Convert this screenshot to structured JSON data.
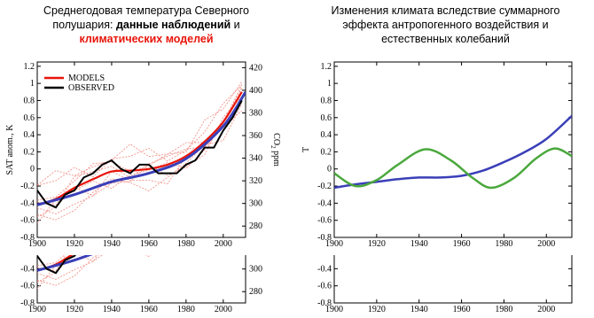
{
  "titles": {
    "left_line1": "Среднегодовая температура Северного",
    "left_line2_a": "полушария: ",
    "left_line2_b": "данные наблюдений",
    "left_line2_c": " и",
    "left_line3": "климатических моделей",
    "right_line1": "Изменения климата вследствие суммарного",
    "right_line2": "эффекта антропогенного воздействия и",
    "right_line3": "естественных колебаний"
  },
  "colors": {
    "models": "#e8140a",
    "models_faint": "#f08a80",
    "observed": "#000000",
    "trend_blue": "#3a3fb8",
    "oscillation_green": "#4aa83c"
  },
  "chart_data": [
    {
      "type": "line",
      "title": "",
      "ylabel": "SAT anom., K",
      "y2label": "CO2 ppm",
      "xlim": [
        1900,
        2012
      ],
      "ylim": [
        -0.8,
        1.25
      ],
      "y2lim": [
        270,
        425
      ],
      "x_ticks": [
        1900,
        1920,
        1940,
        1960,
        1980,
        2000
      ],
      "y_ticks": [
        -0.8,
        -0.6,
        -0.4,
        -0.2,
        0,
        0.2,
        0.4,
        0.6,
        0.8,
        1,
        1.2
      ],
      "y2_ticks": [
        280,
        300,
        320,
        340,
        360,
        380,
        400,
        420
      ],
      "legend": {
        "position": "top-left",
        "entries": [
          "MODELS",
          "OBSERVED"
        ]
      },
      "series": [
        {
          "name": "MODELS",
          "x": [
            1900,
            1910,
            1920,
            1930,
            1940,
            1950,
            1960,
            1970,
            1980,
            1990,
            2000,
            2010
          ],
          "values": [
            -0.42,
            -0.35,
            -0.22,
            -0.12,
            -0.03,
            -0.02,
            0.0,
            0.05,
            0.15,
            0.32,
            0.55,
            0.9
          ]
        },
        {
          "name": "OBSERVED",
          "x": [
            1900,
            1905,
            1910,
            1915,
            1920,
            1925,
            1930,
            1935,
            1940,
            1945,
            1950,
            1955,
            1960,
            1965,
            1970,
            1975,
            1980,
            1985,
            1990,
            1995,
            2000,
            2005,
            2010
          ],
          "values": [
            -0.25,
            -0.4,
            -0.45,
            -0.3,
            -0.25,
            -0.1,
            -0.05,
            0.05,
            0.1,
            0.0,
            -0.05,
            0.05,
            0.05,
            -0.05,
            -0.05,
            -0.05,
            0.05,
            0.1,
            0.25,
            0.25,
            0.45,
            0.6,
            0.8
          ]
        },
        {
          "name": "",
          "x": [
            1900,
            1920,
            1940,
            1960,
            1980,
            2000,
            2012
          ],
          "values": [
            -0.42,
            -0.3,
            -0.15,
            -0.05,
            0.12,
            0.5,
            0.9
          ]
        }
      ]
    },
    {
      "type": "line",
      "title": "",
      "ylabel": "T",
      "xlim": [
        1900,
        2012
      ],
      "ylim": [
        -0.8,
        1.25
      ],
      "x_ticks": [
        1900,
        1920,
        1940,
        1960,
        1980,
        2000
      ],
      "y_ticks": [
        -0.8,
        -0.6,
        -0.4,
        -0.2,
        0,
        0.2,
        0.4,
        0.6,
        0.8,
        1,
        1.2
      ],
      "series": [
        {
          "name": "",
          "x": [
            1900,
            1910,
            1920,
            1930,
            1940,
            1950,
            1960,
            1970,
            1980,
            1990,
            2000,
            2012
          ],
          "values": [
            -0.22,
            -0.18,
            -0.15,
            -0.12,
            -0.1,
            -0.1,
            -0.08,
            -0.02,
            0.08,
            0.2,
            0.35,
            0.62
          ]
        },
        {
          "name": "",
          "x": [
            1900,
            1910,
            1920,
            1930,
            1943,
            1955,
            1965,
            1974,
            1985,
            1995,
            2004,
            2012
          ],
          "values": [
            -0.05,
            -0.2,
            -0.13,
            0.05,
            0.23,
            0.1,
            -0.1,
            -0.22,
            -0.1,
            0.12,
            0.24,
            0.15
          ]
        }
      ]
    }
  ],
  "labels": {
    "models": "MODELS",
    "observed": "OBSERVED",
    "ylabel_left": "SAT anom., K",
    "y2label_left": "CO",
    "y2label_sub": "2",
    "y2label_rest": " ppm",
    "ylabel_right": "T"
  }
}
